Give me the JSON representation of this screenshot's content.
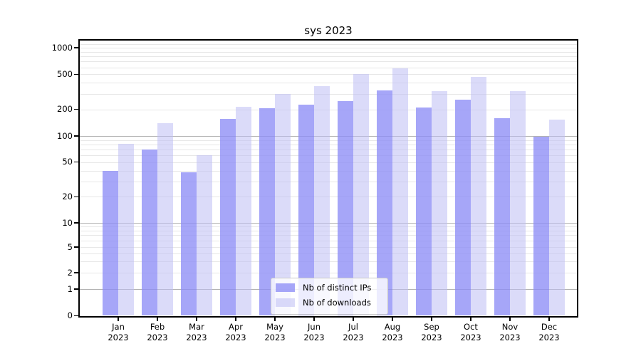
{
  "title": "sys 2023",
  "chart_data": {
    "type": "bar",
    "title": "sys 2023",
    "categories": [
      "Jan 2023",
      "Feb 2023",
      "Mar 2023",
      "Apr 2023",
      "May 2023",
      "Jun 2023",
      "Jul 2023",
      "Aug 2023",
      "Sep 2023",
      "Oct 2023",
      "Nov 2023",
      "Dec 2023"
    ],
    "series": [
      {
        "name": "Nb of distinct IPs",
        "color": "rgba(141,141,246,0.78)",
        "values": [
          40,
          70,
          38,
          155,
          205,
          225,
          250,
          330,
          210,
          260,
          160,
          98
        ]
      },
      {
        "name": "Nb of downloads",
        "color": "rgba(190,190,244,0.55)",
        "values": [
          82,
          140,
          60,
          215,
          300,
          370,
          500,
          580,
          325,
          470,
          320,
          152
        ]
      }
    ],
    "xlabel": "",
    "ylabel": "",
    "yscale": "symlog",
    "yticks": [
      0,
      1,
      2,
      5,
      10,
      20,
      50,
      100,
      200,
      500,
      1000
    ],
    "ylim": [
      0,
      1200
    ],
    "grid": true,
    "legend_position": "lower center"
  }
}
